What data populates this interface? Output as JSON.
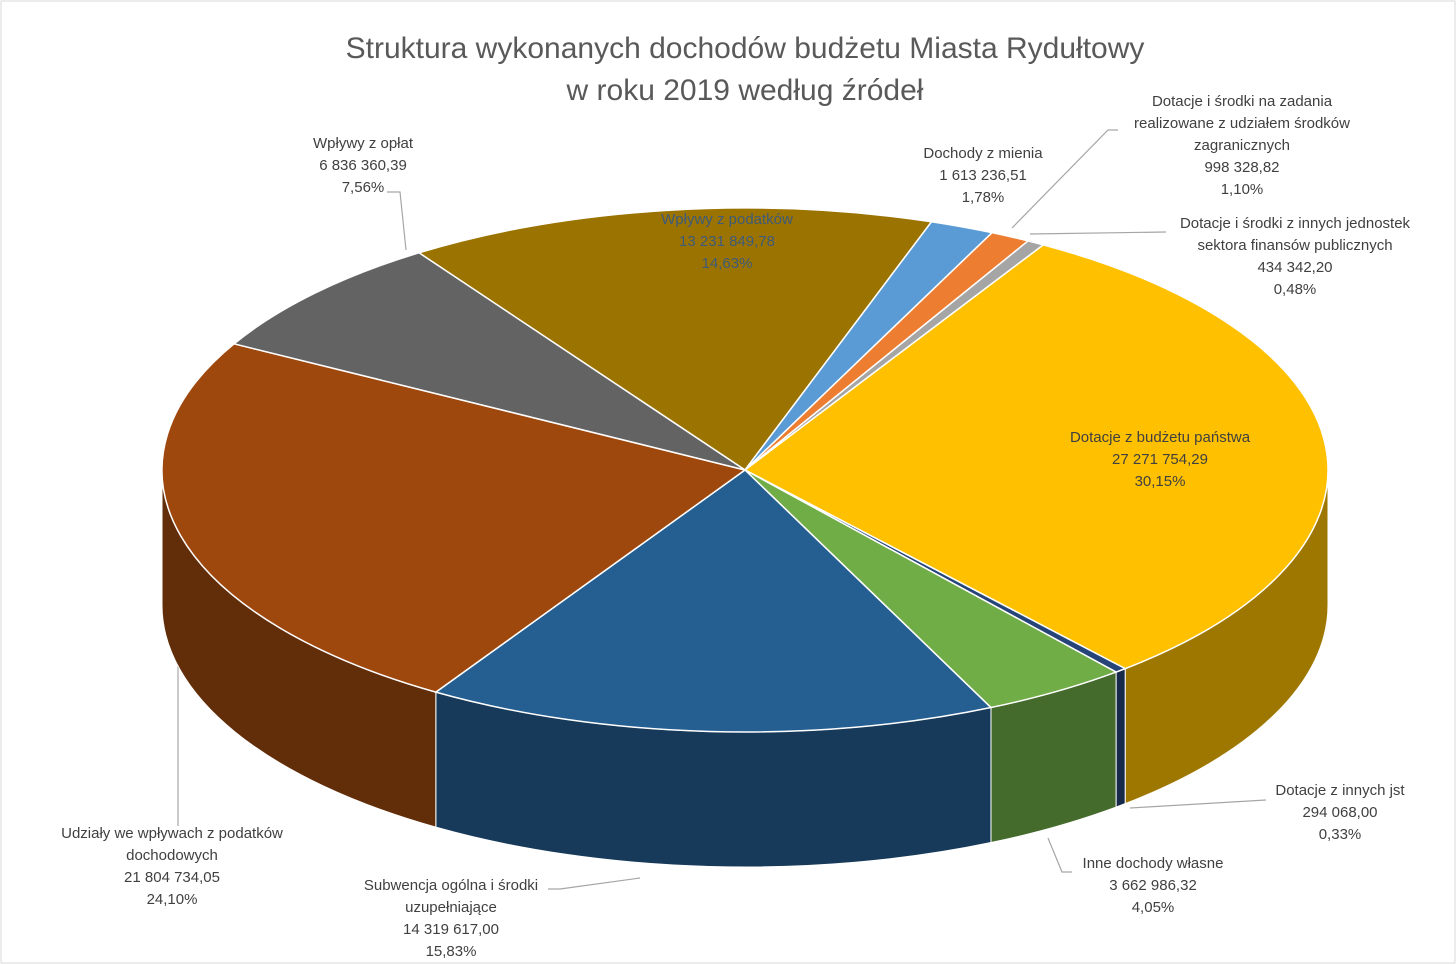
{
  "chart_data": {
    "type": "pie3d",
    "title": "Struktura wykonanych dochodów budżetu Miasta Rydułtowy w roku 2019 według źródeł",
    "categories": [
      "Wpływy z podatków",
      "Dochody z mienia",
      "Dotacje i środki na zadania realizowane z udziałem środków zagranicznych",
      "Dotacje i środki z innych jednostek sektora finansów publicznych",
      "Dotacje z budżetu państwa",
      "Dotacje z innych jst",
      "Inne dochody własne",
      "Subwencja ogólna i środki uzupełniające",
      "Udziały we wpływach z podatków dochodowych",
      "Wpływy z opłat"
    ],
    "values": [
      13231849.78,
      1613236.51,
      998328.82,
      434342.2,
      27271754.29,
      294068.0,
      3662986.32,
      14319617.0,
      21804734.05,
      6836360.39
    ],
    "value_labels": [
      "13 231 849,78",
      "1 613 236,51",
      "998 328,82",
      "434 342,20",
      "27 271 754,29",
      "294 068,00",
      "3 662 986,32",
      "14 319 617,00",
      "21 804 734,05",
      "6 836 360,39"
    ],
    "percents": [
      14.63,
      1.78,
      1.1,
      0.48,
      30.15,
      0.33,
      4.05,
      15.83,
      24.1,
      7.56
    ],
    "percent_labels": [
      "14,63%",
      "1,78%",
      "1,10%",
      "0,48%",
      "30,15%",
      "0,33%",
      "4,05%",
      "15,83%",
      "24,10%",
      "7,56%"
    ],
    "colors": [
      "#9b7300",
      "#5b9bd5",
      "#ed7d31",
      "#a5a5a5",
      "#ffc000",
      "#264478",
      "#70ad47",
      "#255e91",
      "#9e480e",
      "#636363"
    ]
  }
}
